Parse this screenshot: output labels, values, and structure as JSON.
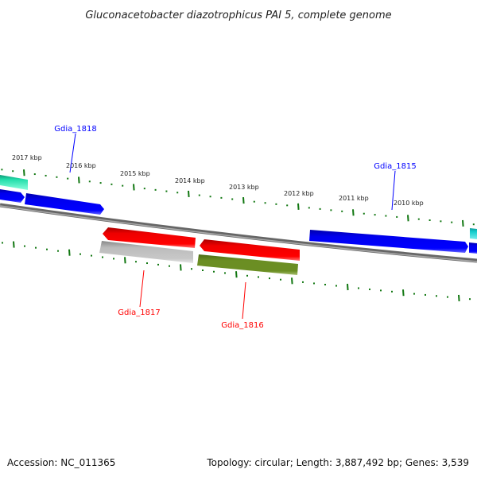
{
  "title": "Gluconacetobacter diazotrophicus PAI 5, complete genome",
  "footer": {
    "accession": "Accession: NC_011365",
    "summary": "Topology: circular; Length: 3,887,492 bp; Genes: 3,539"
  },
  "tick_labels": [
    "2017 kbp",
    "2016 kbp",
    "2015 kbp",
    "2014 kbp",
    "2013 kbp",
    "2012 kbp",
    "2011 kbp",
    "2010 kbp"
  ],
  "gene_labels": {
    "gdia_1818": "Gdia_1818",
    "gdia_1815": "Gdia_1815",
    "gdia_1817": "Gdia_1817",
    "gdia_1816": "Gdia_1816"
  },
  "colors": {
    "forward_cds": "#0000ee",
    "reverse_cds": "#ee0000",
    "teal": "#22ddaa",
    "cyan": "#11cccc",
    "grey_feature": "#c0c0c0",
    "olive_feature": "#6b8e23",
    "backbone": "#808080",
    "ticks": "#117711",
    "forward_label": "#0000ff",
    "reverse_label": "#ff0000"
  }
}
